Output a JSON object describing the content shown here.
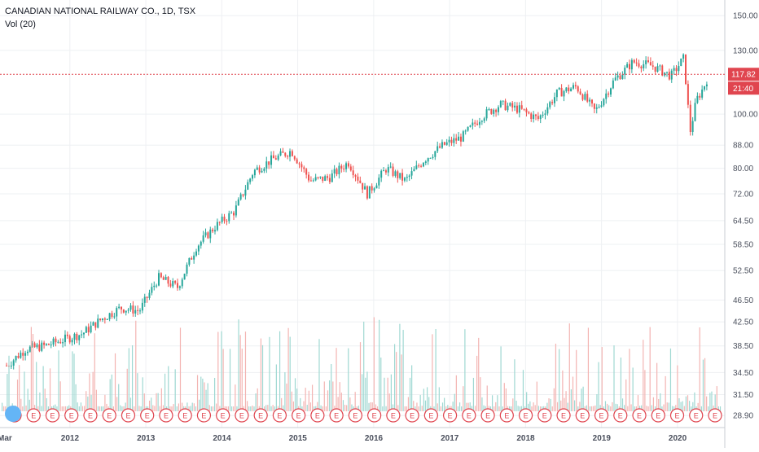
{
  "header": {
    "symbol_line": "CANADIAN NATIONAL RAILWAY CO., 1D, TSX",
    "volume_line": "Vol (20)"
  },
  "price_tag": {
    "value": "117.82",
    "time": "21:40",
    "color": "#e0454f"
  },
  "colors": {
    "up": "#26a69a",
    "down": "#ef5350",
    "grid": "#eef0f3",
    "last_line": "#e0454f"
  },
  "chart_data": {
    "type": "candlestick",
    "title": "",
    "xlabel": "",
    "ylabel": "",
    "y_scale": "log",
    "ylim": [
      27.5,
      160
    ],
    "y_ticks": [
      "150.00",
      "130.00",
      "117.82",
      "100.00",
      "88.00",
      "80.00",
      "72.00",
      "64.50",
      "58.50",
      "52.50",
      "46.50",
      "42.50",
      "38.50",
      "34.50",
      "31.50",
      "28.90"
    ],
    "x_ticks": [
      "Mar",
      "2012",
      "2013",
      "2014",
      "2015",
      "2016",
      "2017",
      "2018",
      "2019",
      "2020"
    ],
    "grid": true,
    "last_price": 117.82,
    "series": [
      {
        "x": [
          "2011-03",
          "2011-06",
          "2011-09",
          "2011-12",
          "2012-03",
          "2012-06",
          "2012-09",
          "2012-12",
          "2013-03",
          "2013-06",
          "2013-09",
          "2013-12",
          "2014-03",
          "2014-06",
          "2014-09",
          "2014-12",
          "2015-03",
          "2015-06",
          "2015-09",
          "2015-12",
          "2016-03",
          "2016-06",
          "2016-09",
          "2016-12",
          "2017-03",
          "2017-06",
          "2017-09",
          "2017-12",
          "2018-03",
          "2018-06",
          "2018-09",
          "2018-12",
          "2019-03",
          "2019-06",
          "2019-09",
          "2019-12",
          "2020-02",
          "2020-03",
          "2020-04",
          "2020-05",
          "2020-06"
        ],
        "values": [
          35.5,
          38.0,
          38.5,
          39.5,
          40.5,
          43.0,
          45.0,
          44.5,
          51.0,
          49.0,
          58.0,
          63.0,
          67.0,
          79.0,
          83.0,
          86.0,
          76.0,
          77.0,
          82.0,
          72.0,
          80.0,
          76.0,
          83.0,
          88.0,
          91.0,
          99.0,
          104.0,
          102.0,
          98.0,
          109.0,
          112.0,
          101.0,
          115.0,
          124.0,
          122.0,
          117.0,
          126.0,
          93.0,
          106.0,
          111.0,
          117.82
        ]
      }
    ],
    "events": {
      "label": "E",
      "count": 38
    }
  }
}
